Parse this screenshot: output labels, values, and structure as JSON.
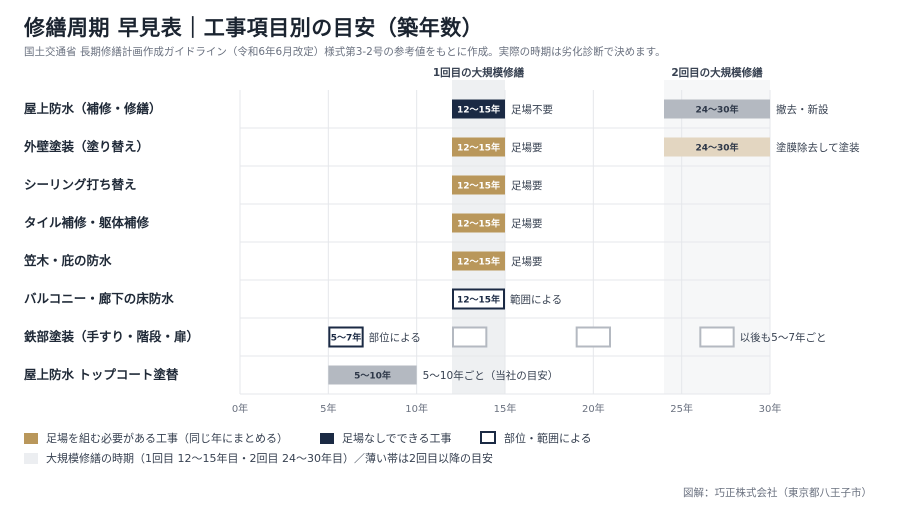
{
  "header": {
    "title": "修繕周期 早見表｜工事項目別の目安（築年数）",
    "subtitle": "国土交通省 長期修繕計画作成ガイドライン（令和6年6月改定）様式第3-2号の参考値をもとに作成。実際の時期は劣化診断で決めます。"
  },
  "colors": {
    "gold": "#b9975b",
    "navy": "#1b2a44",
    "gray": "#b4b9c1",
    "beige": "#e3d6c1",
    "band": "#eef0f2",
    "band_light": "#f6f7f8",
    "outline": "#1b2a44",
    "outline_light": "#b4b9c1"
  },
  "chart_data": {
    "type": "gantt",
    "xlim": [
      0,
      30
    ],
    "xticks": [
      0,
      5,
      10,
      15,
      20,
      25,
      30
    ],
    "tick_suffix": "年",
    "bands": [
      {
        "label": "1回目の大規模修繕",
        "start": 12,
        "end": 15,
        "shade": "band"
      },
      {
        "label": "2回目の大規模修繕",
        "start": 24,
        "end": 30,
        "shade": "band_light"
      }
    ],
    "rows": [
      {
        "label": "屋上防水（補修・修繕）",
        "bars": [
          {
            "start": 12,
            "end": 15,
            "text": "12〜15年",
            "style": "navy",
            "note": "足場不要"
          },
          {
            "start": 24,
            "end": 30,
            "text": "24〜30年",
            "style": "gray",
            "note": "撤去・新設"
          }
        ]
      },
      {
        "label": "外壁塗装（塗り替え）",
        "bars": [
          {
            "start": 12,
            "end": 15,
            "text": "12〜15年",
            "style": "gold",
            "note": "足場要"
          },
          {
            "start": 24,
            "end": 30,
            "text": "24〜30年",
            "style": "beige",
            "note": "塗膜除去して塗装"
          }
        ]
      },
      {
        "label": "シーリング打ち替え",
        "bars": [
          {
            "start": 12,
            "end": 15,
            "text": "12〜15年",
            "style": "gold",
            "note": "足場要"
          }
        ]
      },
      {
        "label": "タイル補修・躯体補修",
        "bars": [
          {
            "start": 12,
            "end": 15,
            "text": "12〜15年",
            "style": "gold",
            "note": "足場要"
          }
        ]
      },
      {
        "label": "笠木・庇の防水",
        "bars": [
          {
            "start": 12,
            "end": 15,
            "text": "12〜15年",
            "style": "gold",
            "note": "足場要"
          }
        ]
      },
      {
        "label": "バルコニー・廊下の床防水",
        "bars": [
          {
            "start": 12,
            "end": 15,
            "text": "12〜15年",
            "style": "outline",
            "note": "範囲による"
          }
        ]
      },
      {
        "label": "鉄部塗装（手すり・階段・扉）",
        "bars": [
          {
            "start": 5,
            "end": 7,
            "text": "5〜7年",
            "style": "outline",
            "note": "部位による"
          },
          {
            "start": 12,
            "end": 14,
            "text": "",
            "style": "outline_light",
            "note": ""
          },
          {
            "start": 19,
            "end": 21,
            "text": "",
            "style": "outline_light",
            "note": ""
          },
          {
            "start": 26,
            "end": 28,
            "text": "",
            "style": "outline_light",
            "note": "以後も5〜7年ごと"
          }
        ]
      },
      {
        "label": "屋上防水 トップコート塗替",
        "bars": [
          {
            "start": 5,
            "end": 10,
            "text": "5〜10年",
            "style": "gray",
            "note": "5〜10年ごと（当社の目安）"
          }
        ]
      }
    ]
  },
  "legend": {
    "gold": "足場を組む必要がある工事（同じ年にまとめる）",
    "navy": "足場なしでできる工事",
    "outline": "部位・範囲による",
    "band": "大規模修繕の時期（1回目 12〜15年目・2回目 24〜30年目）／薄い帯は2回目以降の目安"
  },
  "credit": "図解：巧正株式会社（東京都八王子市）"
}
